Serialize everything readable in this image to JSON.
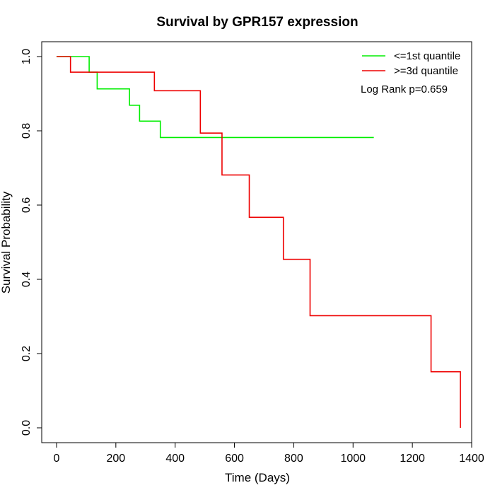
{
  "chart_data": {
    "type": "line",
    "subtype": "kaplan-meier-step",
    "title": "Survival by GPR157 expression",
    "xlabel": "Time (Days)",
    "ylabel": "Survival Probability",
    "xlim": [
      -50,
      1400
    ],
    "ylim": [
      -0.04,
      1.04
    ],
    "xticks": [
      0,
      200,
      400,
      600,
      800,
      1000,
      1200,
      1400
    ],
    "xtick_labels": [
      "0",
      "200",
      "400",
      "600",
      "800",
      "1000",
      "1200",
      "1400"
    ],
    "yticks": [
      0.0,
      0.2,
      0.4,
      0.6,
      0.8,
      1.0
    ],
    "ytick_labels": [
      "0.0",
      "0.2",
      "0.4",
      "0.6",
      "0.8",
      "1.0"
    ],
    "grid": false,
    "legend_position": "top-right",
    "annotation": "Log Rank p=0.659",
    "series": [
      {
        "name": "<=1st quantile",
        "color": "#00ee00",
        "x": [
          0,
          110,
          137,
          246,
          280,
          350,
          1070
        ],
        "y": [
          1.0,
          0.958,
          0.913,
          0.869,
          0.826,
          0.782,
          0.782
        ]
      },
      {
        "name": ">=3d quantile",
        "color": "#ee0000",
        "x": [
          0,
          47,
          330,
          485,
          558,
          650,
          765,
          855,
          1263,
          1362
        ],
        "y": [
          1.0,
          0.958,
          0.908,
          0.794,
          0.681,
          0.567,
          0.454,
          0.302,
          0.151,
          0.0
        ]
      }
    ]
  }
}
